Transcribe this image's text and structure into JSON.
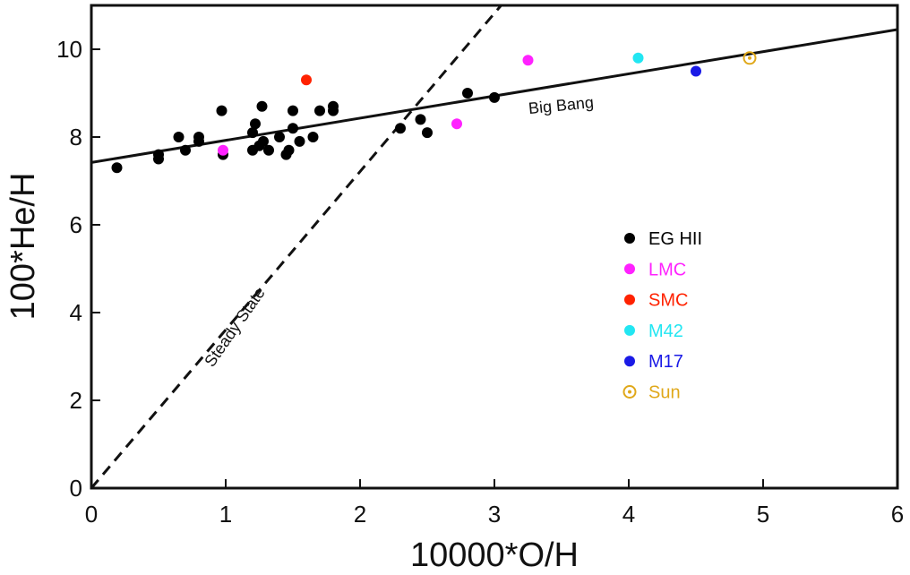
{
  "chart_data": {
    "type": "scatter",
    "xlabel": "10000*O/H",
    "ylabel": "100*He/H",
    "xlim": [
      0,
      6
    ],
    "ylim": [
      0,
      11
    ],
    "xticks": [
      0,
      1,
      2,
      3,
      4,
      5,
      6
    ],
    "yticks": [
      0,
      2,
      4,
      6,
      8,
      10
    ],
    "grid": false,
    "legend_position": "right-middle",
    "series": [
      {
        "name": "EG HII",
        "color": "#000000",
        "marker": "dot",
        "points": [
          [
            0.19,
            7.3
          ],
          [
            0.5,
            7.5
          ],
          [
            0.5,
            7.6
          ],
          [
            0.65,
            8.0
          ],
          [
            0.7,
            7.7
          ],
          [
            0.8,
            7.9
          ],
          [
            0.8,
            8.0
          ],
          [
            0.97,
            8.6
          ],
          [
            0.98,
            7.6
          ],
          [
            1.2,
            8.1
          ],
          [
            1.2,
            7.7
          ],
          [
            1.22,
            8.3
          ],
          [
            1.25,
            7.8
          ],
          [
            1.27,
            8.7
          ],
          [
            1.28,
            7.9
          ],
          [
            1.32,
            7.7
          ],
          [
            1.4,
            8.0
          ],
          [
            1.45,
            7.6
          ],
          [
            1.47,
            7.7
          ],
          [
            1.5,
            8.2
          ],
          [
            1.5,
            8.6
          ],
          [
            1.55,
            7.9
          ],
          [
            1.65,
            8.0
          ],
          [
            1.7,
            8.6
          ],
          [
            1.8,
            8.6
          ],
          [
            1.8,
            8.7
          ],
          [
            2.3,
            8.2
          ],
          [
            2.45,
            8.4
          ],
          [
            2.5,
            8.1
          ],
          [
            2.8,
            9.0
          ],
          [
            3.0,
            8.9
          ]
        ]
      },
      {
        "name": "LMC",
        "color": "#ff22ff",
        "marker": "dot",
        "points": [
          [
            0.98,
            7.7
          ],
          [
            2.72,
            8.3
          ],
          [
            3.25,
            9.75
          ]
        ]
      },
      {
        "name": "SMC",
        "color": "#ff2200",
        "marker": "dot",
        "points": [
          [
            1.6,
            9.3
          ]
        ]
      },
      {
        "name": "M42",
        "color": "#22e6f2",
        "marker": "dot",
        "points": [
          [
            4.07,
            9.8
          ]
        ]
      },
      {
        "name": "M17",
        "color": "#1a1ae6",
        "marker": "dot",
        "points": [
          [
            4.5,
            9.5
          ]
        ]
      },
      {
        "name": "Sun",
        "color": "#e0a81a",
        "marker": "sun",
        "points": [
          [
            4.9,
            9.8
          ]
        ]
      }
    ],
    "lines": [
      {
        "name": "Big Bang",
        "style": "solid",
        "x": [
          0,
          6
        ],
        "y": [
          7.42,
          10.45
        ],
        "label_at": [
          3.5,
          8.6
        ],
        "label_angle_deg": -5.6
      },
      {
        "name": "Steady State",
        "style": "dashed",
        "x": [
          0,
          3.05
        ],
        "y": [
          0,
          11
        ],
        "label_at": [
          1.1,
          3.6
        ],
        "label_angle_deg": -55
      }
    ]
  }
}
